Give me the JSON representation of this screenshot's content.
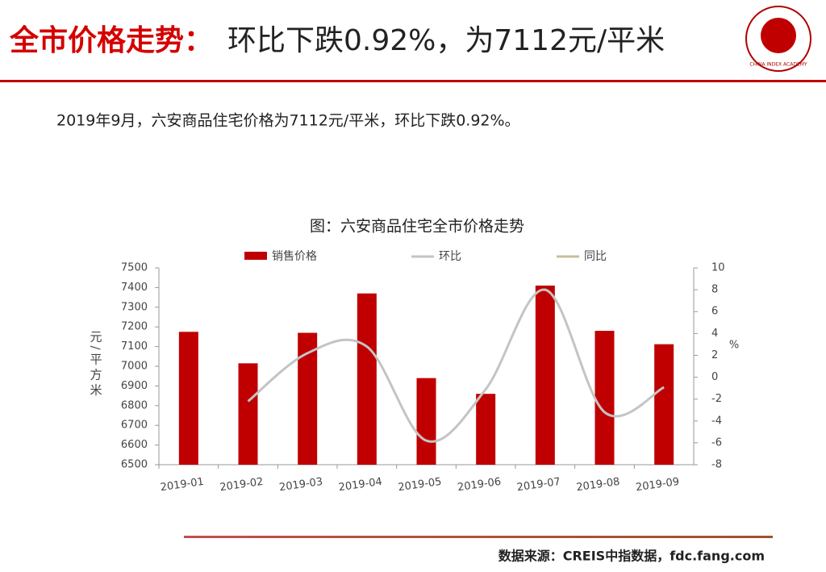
{
  "header": {
    "title_red": "全市价格走势：",
    "title_black": "环比下跌0.92%，为7112元/平米"
  },
  "logo": {
    "text": "CHINA INDEX ACADEMY"
  },
  "summary": "2019年9月，六安商品住宅价格为7112元/平米，环比下跌0.92%。",
  "chart_data": {
    "type": "bar",
    "title": "图：六安商品住宅全市价格走势",
    "categories": [
      "2019-01",
      "2019-02",
      "2019-03",
      "2019-04",
      "2019-05",
      "2019-06",
      "2019-07",
      "2019-08",
      "2019-09"
    ],
    "series": [
      {
        "name": "销售价格",
        "type": "bar",
        "color": "#c00000",
        "values": [
          7175,
          7015,
          7170,
          7370,
          6940,
          6860,
          7410,
          7180,
          7112
        ]
      },
      {
        "name": "环比",
        "type": "line",
        "axis": "y2",
        "color": "#c4c4c4",
        "values": [
          null,
          -2.2,
          2.2,
          2.8,
          -5.8,
          -1.1,
          8.0,
          -3.2,
          -0.92
        ]
      },
      {
        "name": "同比",
        "type": "line",
        "axis": "y2",
        "color": "#c8bd9a",
        "values": [
          null,
          null,
          null,
          null,
          null,
          null,
          null,
          null,
          null
        ]
      }
    ],
    "ylabel": "元/平方米",
    "y2label": "%",
    "ylim": [
      6500,
      7500
    ],
    "yticks": [
      6500,
      6600,
      6700,
      6800,
      6900,
      7000,
      7100,
      7200,
      7300,
      7400,
      7500
    ],
    "y2lim": [
      -8,
      10
    ],
    "y2ticks": [
      -8,
      -6,
      -4,
      -2,
      0,
      2,
      4,
      6,
      8,
      10
    ],
    "legend": "top"
  },
  "footer": {
    "source": "数据来源：CREIS中指数据，fdc.fang.com"
  }
}
